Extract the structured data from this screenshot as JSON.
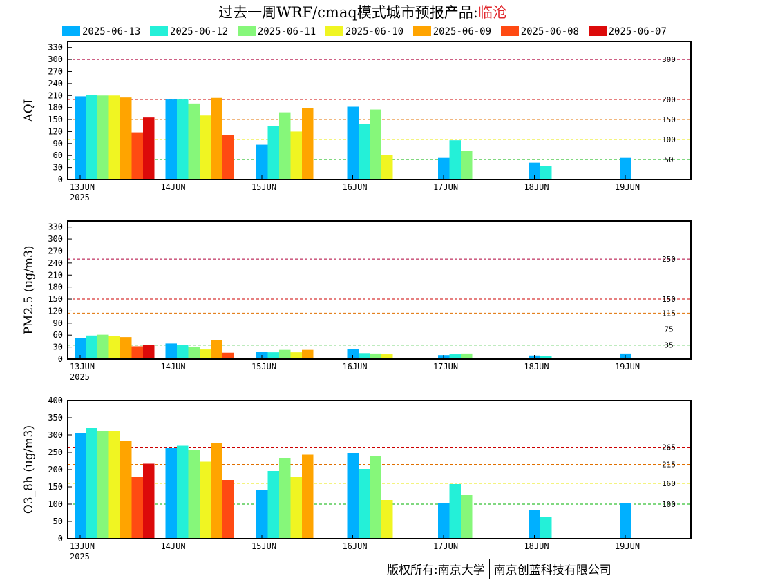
{
  "title": {
    "main": "过去一周WRF/cmaq模式城市预报产品:",
    "city": "临沧"
  },
  "legend": [
    {
      "label": "2025-06-13",
      "color": "#00b0ff"
    },
    {
      "label": "2025-06-12",
      "color": "#24f0d8"
    },
    {
      "label": "2025-06-11",
      "color": "#86f77a"
    },
    {
      "label": "2025-06-10",
      "color": "#f0f522"
    },
    {
      "label": "2025-06-09",
      "color": "#ffa400"
    },
    {
      "label": "2025-06-08",
      "color": "#ff4a12"
    },
    {
      "label": "2025-06-07",
      "color": "#dc0a0a"
    }
  ],
  "copyright": {
    "left": "版权所有:南京大学",
    "right": "南京创蓝科技有限公司"
  },
  "chart_data": [
    {
      "type": "bar",
      "ylabel": "AQI",
      "ylim": [
        0,
        345
      ],
      "yticks": [
        0,
        30,
        60,
        90,
        120,
        150,
        180,
        210,
        240,
        270,
        300,
        330
      ],
      "xtick_labels": [
        "13JUN",
        "14JUN",
        "15JUN",
        "16JUN",
        "17JUN",
        "18JUN",
        "19JUN"
      ],
      "x_year": "2025",
      "thresholds": [
        {
          "value": 300,
          "label": "300",
          "color": "#b0003a"
        },
        {
          "value": 200,
          "label": "200",
          "color": "#cc0000"
        },
        {
          "value": 150,
          "label": "150",
          "color": "#e07000"
        },
        {
          "value": 100,
          "label": "100",
          "color": "#e8e800"
        },
        {
          "value": 50,
          "label": "50",
          "color": "#00b000"
        }
      ],
      "days": [
        [
          208,
          212,
          210,
          210,
          205,
          118,
          155
        ],
        [
          200,
          200,
          190,
          160,
          204,
          111
        ],
        [
          87,
          133,
          168,
          120,
          178
        ],
        [
          182,
          139,
          175,
          62
        ],
        [
          54,
          98,
          72
        ],
        [
          42,
          34
        ],
        [
          54
        ]
      ]
    },
    {
      "type": "bar",
      "ylabel": "PM2.5 (ug/m3)",
      "ylim": [
        0,
        345
      ],
      "yticks": [
        0,
        30,
        60,
        90,
        120,
        150,
        180,
        210,
        240,
        270,
        300,
        330
      ],
      "xtick_labels": [
        "13JUN",
        "14JUN",
        "15JUN",
        "16JUN",
        "17JUN",
        "18JUN",
        "19JUN"
      ],
      "x_year": "2025",
      "thresholds": [
        {
          "value": 250,
          "label": "250",
          "color": "#b0003a"
        },
        {
          "value": 150,
          "label": "150",
          "color": "#cc0000"
        },
        {
          "value": 115,
          "label": "115",
          "color": "#e07000"
        },
        {
          "value": 75,
          "label": "75",
          "color": "#e8e800"
        },
        {
          "value": 35,
          "label": "35",
          "color": "#00b000"
        }
      ],
      "days": [
        [
          53,
          59,
          61,
          58,
          55,
          32,
          35
        ],
        [
          39,
          35,
          31,
          24,
          47,
          16
        ],
        [
          18,
          17,
          23,
          17,
          23
        ],
        [
          25,
          15,
          14,
          12
        ],
        [
          10,
          12,
          14
        ],
        [
          9,
          7
        ],
        [
          14
        ]
      ]
    },
    {
      "type": "bar",
      "ylabel": "O3_8h (ug/m3)",
      "ylim": [
        0,
        400
      ],
      "yticks": [
        0,
        50,
        100,
        150,
        200,
        250,
        300,
        350,
        400
      ],
      "xtick_labels": [
        "13JUN",
        "14JUN",
        "15JUN",
        "16JUN",
        "17JUN",
        "18JUN",
        "19JUN"
      ],
      "x_year": "2025",
      "thresholds": [
        {
          "value": 265,
          "label": "265",
          "color": "#cc0000"
        },
        {
          "value": 215,
          "label": "215",
          "color": "#e07000"
        },
        {
          "value": 160,
          "label": "160",
          "color": "#e8e800"
        },
        {
          "value": 100,
          "label": "100",
          "color": "#00b000"
        }
      ],
      "days": [
        [
          306,
          320,
          312,
          312,
          282,
          178,
          217
        ],
        [
          262,
          269,
          256,
          223,
          276,
          170
        ],
        [
          142,
          196,
          234,
          180,
          243
        ],
        [
          248,
          202,
          240,
          112
        ],
        [
          104,
          158,
          126
        ],
        [
          82,
          64
        ],
        [
          104
        ]
      ]
    }
  ]
}
